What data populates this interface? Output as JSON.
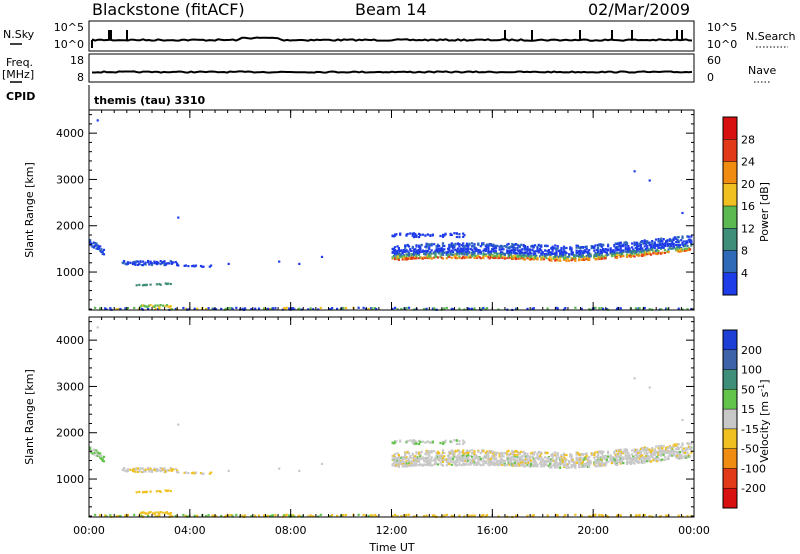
{
  "header": {
    "station": "Blackstone (fitACF)",
    "beam": "Beam 14",
    "date": "02/Mar/2009"
  },
  "panels": {
    "nsky_label": "N.Sky",
    "nsearch_label": "N.Search",
    "freq_label": "Freq.",
    "freq_unit": "[MHz]",
    "nave_label": "Nave",
    "cpid_label": "CPID",
    "cpid_text": "themis (tau) 3310",
    "noise_ticks": {
      "top": "10^5",
      "bottom": "10^0"
    },
    "freq_ticks": [
      "18",
      "8"
    ],
    "nave_ticks": [
      "60",
      "0"
    ]
  },
  "chart_data": {
    "type": "heatmap",
    "xlabel": "Time UT",
    "x_ticks": [
      "00:00",
      "04:00",
      "08:00",
      "12:00",
      "16:00",
      "20:00",
      "00:00"
    ],
    "x_range_hours": [
      0,
      24
    ],
    "ylabel": "Slant Range [km]",
    "y_ticks": [
      1000,
      2000,
      3000,
      4000
    ],
    "y_range_km": [
      180,
      4500
    ],
    "power": {
      "colorbar_label": "Power [dB]",
      "ticks": [
        4,
        8,
        12,
        16,
        20,
        24,
        28
      ],
      "range": [
        0,
        32
      ],
      "colors": [
        "#1e3ce8",
        "#2f6ab8",
        "#3f8e7a",
        "#5cb850",
        "#f0c020",
        "#f08c10",
        "#e23a18",
        "#d81010"
      ]
    },
    "velocity": {
      "colorbar_label": "Velocity [m s^-1]",
      "ticks": [
        200,
        100,
        50,
        15,
        -15,
        -50,
        -100,
        -200
      ],
      "colors": [
        "#1d3fd6",
        "#3f63a8",
        "#3f8e7a",
        "#62c44a",
        "#c8c8c8",
        "#f0c020",
        "#f08c10",
        "#e23a18",
        "#d81010"
      ]
    }
  }
}
